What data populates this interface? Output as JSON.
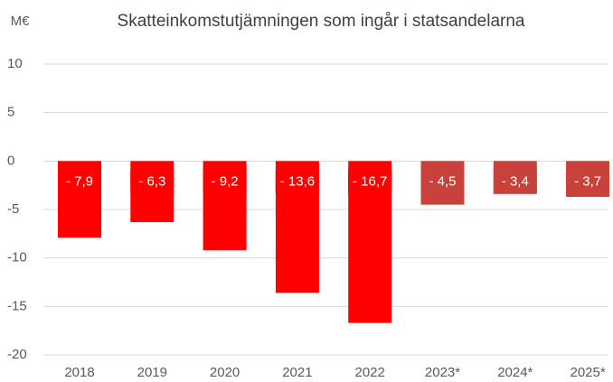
{
  "chart_data": {
    "type": "bar",
    "title": "Skatteinkomstutjämningen som ingår i statsandelarna",
    "y_label": "M€",
    "categories": [
      "2018",
      "2019",
      "2020",
      "2021",
      "2022",
      "2023*",
      "2024*",
      "2025*"
    ],
    "values": [
      -7.9,
      -6.3,
      -9.2,
      -13.6,
      -16.7,
      -4.5,
      -3.4,
      -3.7
    ],
    "value_labels": [
      "- 7,9",
      "- 6,3",
      "- 9,2",
      "- 13,6",
      "- 16,7",
      "- 4,5",
      "- 3,4",
      "- 3,7"
    ],
    "colors": [
      "#ff0000",
      "#ff0000",
      "#ff0000",
      "#ff0000",
      "#ff0000",
      "#c9413b",
      "#c9413b",
      "#c9413b"
    ],
    "ylim": [
      -20,
      10
    ],
    "yticks": [
      -20,
      -15,
      -10,
      -5,
      0,
      5,
      10
    ],
    "grid": true
  }
}
